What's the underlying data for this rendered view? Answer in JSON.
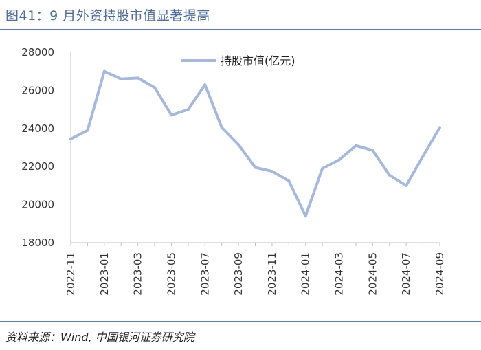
{
  "figure": {
    "title": "图41：9 月外资持股市值显著提高",
    "source": "资料来源：Wind,  中国银河证券研究院"
  },
  "colors": {
    "accent": "#5c7ab8",
    "series": "#a4b8e0",
    "axis": "#bfbfbf",
    "title": "#4a6ba8"
  },
  "chart_data": {
    "type": "line",
    "title": "",
    "xlabel": "",
    "ylabel": "",
    "ylim": [
      18000,
      28000
    ],
    "yticks": [
      18000,
      20000,
      22000,
      24000,
      26000,
      28000
    ],
    "grid": false,
    "legend_position": "top-center",
    "x": [
      "2022-11",
      "2022-12",
      "2023-01",
      "2023-02",
      "2023-03",
      "2023-04",
      "2023-05",
      "2023-06",
      "2023-07",
      "2023-08",
      "2023-09",
      "2023-10",
      "2023-11",
      "2023-12",
      "2024-01",
      "2024-02",
      "2024-03",
      "2024-04",
      "2024-05",
      "2024-06",
      "2024-07",
      "2024-08",
      "2024-09"
    ],
    "xtick_labels": [
      "2022-11",
      "2023-01",
      "2023-03",
      "2023-05",
      "2023-07",
      "2023-09",
      "2023-11",
      "2024-01",
      "2024-03",
      "2024-05",
      "2024-07",
      "2024-09"
    ],
    "series": [
      {
        "name": "持股市值(亿元)",
        "values": [
          23450,
          23900,
          27000,
          26600,
          26650,
          26150,
          24700,
          25000,
          26300,
          24050,
          23150,
          21950,
          21750,
          21250,
          19400,
          21900,
          22350,
          23100,
          22850,
          21550,
          21000,
          22550,
          24050
        ]
      }
    ]
  }
}
